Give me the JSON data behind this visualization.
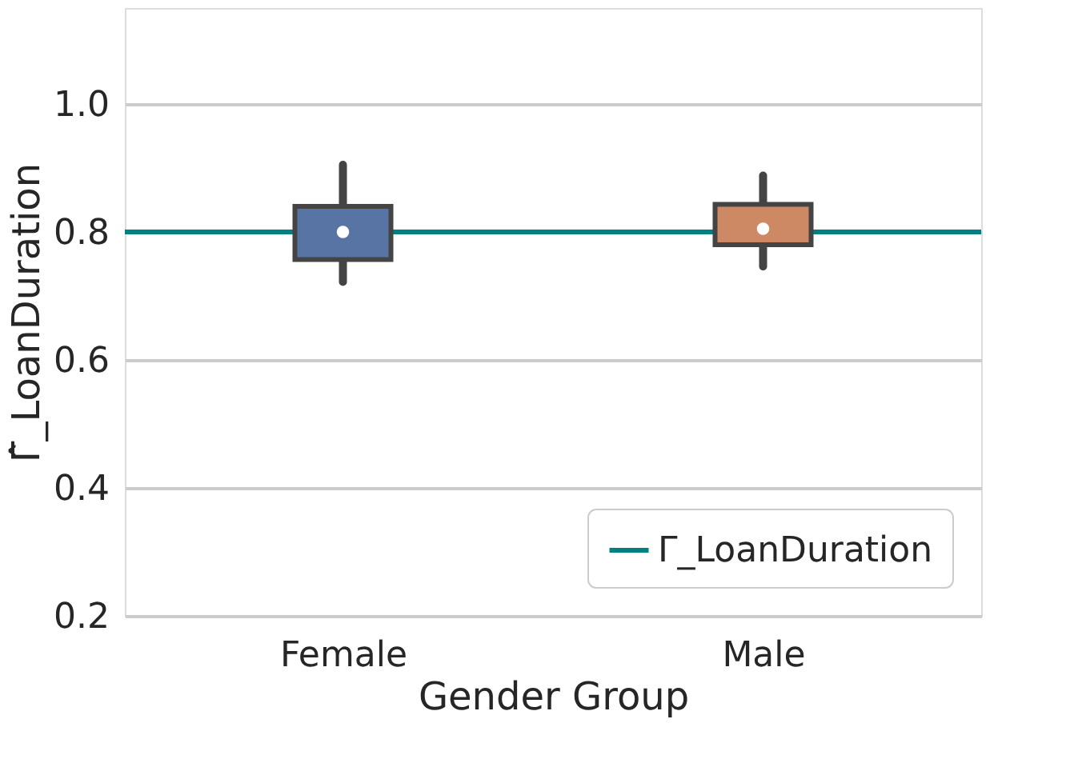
{
  "chart_data": {
    "type": "box",
    "xlabel": "Gender Group",
    "ylabel": "Γ̂_LoanDuration",
    "categories": [
      "Female",
      "Male"
    ],
    "boxes": [
      {
        "low": 0.722,
        "q1": 0.757,
        "median": 0.8,
        "q3": 0.84,
        "high": 0.905
      },
      {
        "low": 0.746,
        "q1": 0.78,
        "median": 0.805,
        "q3": 0.843,
        "high": 0.888
      }
    ],
    "colors": [
      "#5874a5",
      "#cd8963"
    ],
    "ylim": [
      0.2,
      1.15
    ],
    "yticks": [
      0.2,
      0.4,
      0.6,
      0.8,
      {
        "value": 1.0,
        "label": "1.0"
      }
    ],
    "ref_lines": [
      {
        "axis": "y",
        "value": 0.8,
        "label": "Γ_LoanDuration",
        "color": "#008080"
      }
    ],
    "grid": "y",
    "legend": "bottom right"
  }
}
